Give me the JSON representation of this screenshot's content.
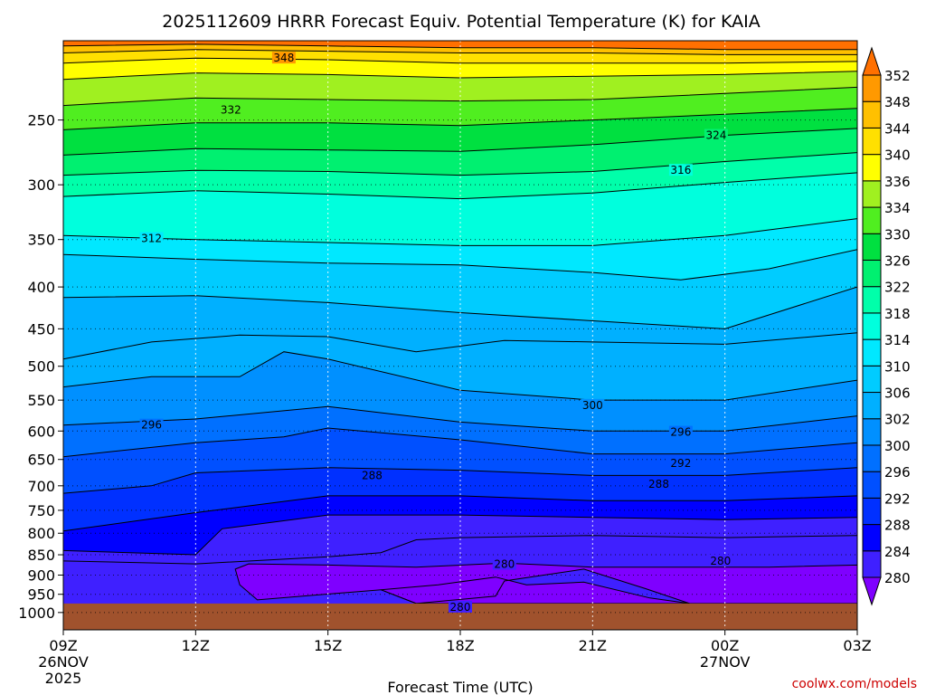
{
  "chart_data": {
    "type": "heatmap",
    "title": "2025112609 HRRR Forecast Equiv. Potential Temperature (K) for KAIA",
    "xlabel": "Forecast Time (UTC)",
    "ylabel": "",
    "x_ticks": [
      {
        "hour": 0,
        "label": "09Z",
        "sub": [
          "26NOV",
          "2025"
        ]
      },
      {
        "hour": 3,
        "label": "12Z",
        "sub": []
      },
      {
        "hour": 6,
        "label": "15Z",
        "sub": []
      },
      {
        "hour": 9,
        "label": "18Z",
        "sub": []
      },
      {
        "hour": 12,
        "label": "21Z",
        "sub": []
      },
      {
        "hour": 15,
        "label": "00Z",
        "sub": [
          "27NOV"
        ]
      },
      {
        "hour": 18,
        "label": "03Z",
        "sub": []
      }
    ],
    "xlim_hours": [
      0,
      18
    ],
    "y_axis": "pressure (hPa), log scale, inverted",
    "ylim": [
      1050,
      200
    ],
    "y_ticks": [
      250,
      300,
      350,
      400,
      450,
      500,
      550,
      600,
      650,
      700,
      750,
      800,
      850,
      900,
      950,
      1000
    ],
    "grid": "dotted",
    "ground_color": "#a0522d",
    "surface_pressure": 975,
    "colorbar": {
      "levels": [
        280,
        284,
        288,
        292,
        296,
        300,
        302,
        306,
        310,
        314,
        318,
        322,
        326,
        330,
        334,
        336,
        340,
        344,
        348,
        352
      ],
      "colors": [
        "#7f00ff",
        "#3f20ff",
        "#0000ff",
        "#0030ff",
        "#0050ff",
        "#0070ff",
        "#0090ff",
        "#00b0ff",
        "#00ccff",
        "#00e8ff",
        "#00ffdd",
        "#00ffaa",
        "#00f070",
        "#00e040",
        "#50ee20",
        "#a0f020",
        "#ffff00",
        "#ffe000",
        "#ffc000",
        "#ff9900",
        "#ff7000"
      ]
    },
    "contour_labels": [
      {
        "hour": 5.0,
        "p": 210,
        "value": "348"
      },
      {
        "hour": 3.8,
        "p": 243,
        "value": "332"
      },
      {
        "hour": 14.8,
        "p": 261,
        "value": "324"
      },
      {
        "hour": 14.0,
        "p": 288,
        "value": "316"
      },
      {
        "hour": 2.0,
        "p": 349,
        "value": "312"
      },
      {
        "hour": 12.0,
        "p": 558,
        "value": "300"
      },
      {
        "hour": 2.0,
        "p": 590,
        "value": "296"
      },
      {
        "hour": 14.0,
        "p": 602,
        "value": "296"
      },
      {
        "hour": 14.0,
        "p": 657,
        "value": "292"
      },
      {
        "hour": 7.0,
        "p": 680,
        "value": "288"
      },
      {
        "hour": 13.5,
        "p": 697,
        "value": "288"
      },
      {
        "hour": 10.0,
        "p": 873,
        "value": "280"
      },
      {
        "hour": 14.9,
        "p": 865,
        "value": "280"
      },
      {
        "hour": 9.0,
        "p": 985,
        "value": "280"
      }
    ],
    "contours": [
      {
        "v": 348,
        "p": [
          [
            0,
            203
          ],
          [
            3,
            202
          ],
          [
            6,
            203
          ],
          [
            9,
            204
          ],
          [
            12,
            204
          ],
          [
            15,
            205
          ],
          [
            18,
            205
          ]
        ]
      },
      {
        "v": 344,
        "p": [
          [
            0,
            207
          ],
          [
            3,
            205
          ],
          [
            6,
            206
          ],
          [
            9,
            207
          ],
          [
            12,
            207
          ],
          [
            15,
            208
          ],
          [
            18,
            208
          ]
        ]
      },
      {
        "v": 340,
        "p": [
          [
            0,
            213
          ],
          [
            3,
            210
          ],
          [
            6,
            211
          ],
          [
            9,
            213
          ],
          [
            12,
            213
          ],
          [
            15,
            213
          ],
          [
            18,
            212
          ]
        ]
      },
      {
        "v": 336,
        "p": [
          [
            0,
            223
          ],
          [
            3,
            219
          ],
          [
            6,
            220
          ],
          [
            9,
            222
          ],
          [
            12,
            221
          ],
          [
            15,
            220
          ],
          [
            18,
            218
          ]
        ]
      },
      {
        "v": 332,
        "p": [
          [
            0,
            240
          ],
          [
            3,
            235
          ],
          [
            6,
            236
          ],
          [
            9,
            237
          ],
          [
            12,
            236
          ],
          [
            15,
            232
          ],
          [
            18,
            228
          ]
        ]
      },
      {
        "v": 328,
        "p": [
          [
            0,
            257
          ],
          [
            3,
            252
          ],
          [
            6,
            252
          ],
          [
            9,
            254
          ],
          [
            12,
            250
          ],
          [
            15,
            246
          ],
          [
            18,
            242
          ]
        ]
      },
      {
        "v": 324,
        "p": [
          [
            0,
            276
          ],
          [
            3,
            271
          ],
          [
            6,
            272
          ],
          [
            9,
            273
          ],
          [
            12,
            268
          ],
          [
            15,
            261
          ],
          [
            18,
            256
          ]
        ]
      },
      {
        "v": 320,
        "p": [
          [
            0,
            292
          ],
          [
            3,
            288
          ],
          [
            6,
            289
          ],
          [
            9,
            292
          ],
          [
            12,
            289
          ],
          [
            15,
            281
          ],
          [
            18,
            274
          ]
        ]
      },
      {
        "v": 316,
        "p": [
          [
            0,
            310
          ],
          [
            3,
            305
          ],
          [
            6,
            308
          ],
          [
            9,
            312
          ],
          [
            12,
            307
          ],
          [
            15,
            298
          ],
          [
            18,
            290
          ]
        ]
      },
      {
        "v": 312,
        "p": [
          [
            0,
            346
          ],
          [
            3,
            350
          ],
          [
            6,
            353
          ],
          [
            9,
            356
          ],
          [
            12,
            356
          ],
          [
            15,
            346
          ],
          [
            18,
            330
          ]
        ]
      },
      {
        "v": 310,
        "p": [
          [
            0,
            365
          ],
          [
            3,
            370
          ],
          [
            6,
            374
          ],
          [
            9,
            376
          ],
          [
            12,
            384
          ],
          [
            14,
            392
          ],
          [
            16,
            380
          ],
          [
            18,
            360
          ]
        ]
      },
      {
        "v": 306,
        "p": [
          [
            0,
            412
          ],
          [
            3,
            410
          ],
          [
            6,
            418
          ],
          [
            9,
            430
          ],
          [
            12,
            440
          ],
          [
            15,
            450
          ],
          [
            18,
            400
          ]
        ]
      },
      {
        "v": 304,
        "p": [
          [
            0,
            490
          ],
          [
            2,
            467
          ],
          [
            4,
            458
          ],
          [
            6,
            460
          ],
          [
            8,
            480
          ],
          [
            10,
            465
          ],
          [
            12,
            467
          ],
          [
            15,
            470
          ],
          [
            18,
            455
          ]
        ]
      },
      {
        "v": 302,
        "p": [
          [
            0,
            530
          ],
          [
            2,
            515
          ],
          [
            4,
            515
          ],
          [
            5,
            480
          ],
          [
            6,
            490
          ],
          [
            9,
            535
          ],
          [
            12,
            550
          ],
          [
            15,
            550
          ],
          [
            18,
            520
          ]
        ]
      },
      {
        "v": 298,
        "p": [
          [
            0,
            590
          ],
          [
            3,
            580
          ],
          [
            6,
            560
          ],
          [
            9,
            585
          ],
          [
            12,
            600
          ],
          [
            15,
            600
          ],
          [
            18,
            575
          ]
        ]
      },
      {
        "v": 294,
        "p": [
          [
            0,
            645
          ],
          [
            3,
            620
          ],
          [
            5,
            610
          ],
          [
            6,
            595
          ],
          [
            9,
            615
          ],
          [
            12,
            640
          ],
          [
            15,
            640
          ],
          [
            18,
            620
          ]
        ]
      },
      {
        "v": 290,
        "p": [
          [
            0,
            715
          ],
          [
            2,
            700
          ],
          [
            3,
            675
          ],
          [
            6,
            665
          ],
          [
            9,
            670
          ],
          [
            12,
            680
          ],
          [
            15,
            680
          ],
          [
            18,
            665
          ]
        ]
      },
      {
        "v": 286,
        "p": [
          [
            0,
            795
          ],
          [
            3,
            755
          ],
          [
            6,
            720
          ],
          [
            9,
            720
          ],
          [
            12,
            730
          ],
          [
            15,
            730
          ],
          [
            18,
            720
          ]
        ]
      },
      {
        "v": 284,
        "p": [
          [
            0,
            840
          ],
          [
            3,
            850
          ],
          [
            3.6,
            790
          ],
          [
            6,
            760
          ],
          [
            9,
            760
          ],
          [
            12,
            765
          ],
          [
            15,
            770
          ],
          [
            18,
            765
          ]
        ]
      },
      {
        "v": 282,
        "p": [
          [
            0,
            865
          ],
          [
            3,
            872
          ],
          [
            6,
            855
          ],
          [
            7.2,
            845
          ],
          [
            8,
            815
          ],
          [
            9,
            810
          ],
          [
            12,
            805
          ],
          [
            15,
            810
          ],
          [
            18,
            805
          ]
        ]
      }
    ],
    "closed_contours": [
      {
        "v": 280,
        "p": [
          [
            3.9,
            885
          ],
          [
            4.2,
            872
          ],
          [
            6,
            875
          ],
          [
            8,
            880
          ],
          [
            10,
            870
          ],
          [
            12,
            880
          ],
          [
            14,
            880
          ],
          [
            16,
            880
          ],
          [
            18,
            875
          ],
          [
            18,
            975
          ],
          [
            14.2,
            975
          ],
          [
            13.2,
            935
          ],
          [
            11.8,
            885
          ],
          [
            10,
            915
          ],
          [
            9.8,
            955
          ],
          [
            8,
            975
          ],
          [
            7.2,
            938
          ],
          [
            4.4,
            965
          ],
          [
            4.0,
            925
          ]
        ]
      },
      {
        "v": 278,
        "p": [
          [
            7.2,
            938
          ],
          [
            8.5,
            925
          ],
          [
            9.8,
            905
          ],
          [
            10.5,
            925
          ],
          [
            11.8,
            918
          ],
          [
            13.3,
            960
          ],
          [
            14.2,
            975
          ],
          [
            8,
            975
          ]
        ]
      }
    ]
  }
}
